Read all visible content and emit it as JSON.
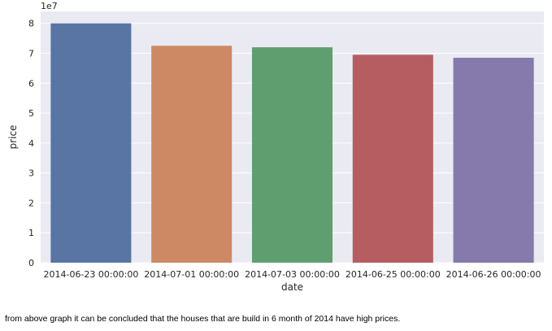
{
  "chart_data": {
    "type": "bar",
    "categories": [
      "2014-06-23 00:00:00",
      "2014-07-01 00:00:00",
      "2014-07-03 00:00:00",
      "2014-06-25 00:00:00",
      "2014-06-26 00:00:00"
    ],
    "values": [
      80000000,
      72500000,
      72000000,
      69500000,
      68500000
    ],
    "colors": [
      "#5875a4",
      "#cc8963",
      "#5f9e6e",
      "#b55d60",
      "#857aab"
    ],
    "xlabel": "date",
    "ylabel": "price",
    "offset_text": "1e7",
    "yticks": [
      "0",
      "1",
      "2",
      "3",
      "4",
      "5",
      "6",
      "7",
      "8"
    ],
    "ylim": [
      0,
      84000000
    ],
    "grid": true,
    "style": {
      "plot_background": "#eaeaf2",
      "grid_color": "#ffffff"
    }
  },
  "note": {
    "text": "from above graph it can be concluded that the houses that are build in 6 month of 2014 have high prices."
  }
}
